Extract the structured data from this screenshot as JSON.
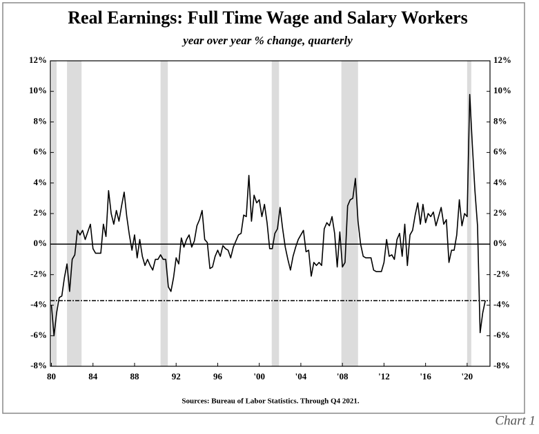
{
  "chart_data": {
    "type": "line",
    "title": "Real Earnings: Full Time Wage and Salary Workers",
    "subtitle": "year over year % change, quarterly",
    "source": "Sources: Bureau of Labor Statistics. Through Q4 2021.",
    "chart_label": "Chart 1",
    "x": [
      1980,
      1980.25,
      1980.5,
      1980.75,
      1981,
      1981.25,
      1981.5,
      1981.75,
      1982,
      1982.25,
      1982.5,
      1982.75,
      1983,
      1983.25,
      1983.5,
      1983.75,
      1984,
      1984.25,
      1984.5,
      1984.75,
      1985,
      1985.25,
      1985.5,
      1985.75,
      1986,
      1986.25,
      1986.5,
      1986.75,
      1987,
      1987.25,
      1987.5,
      1987.75,
      1988,
      1988.25,
      1988.5,
      1988.75,
      1989,
      1989.25,
      1989.5,
      1989.75,
      1990,
      1990.25,
      1990.5,
      1990.75,
      1991,
      1991.25,
      1991.5,
      1991.75,
      1992,
      1992.25,
      1992.5,
      1992.75,
      1993,
      1993.25,
      1993.5,
      1993.75,
      1994,
      1994.25,
      1994.5,
      1994.75,
      1995,
      1995.25,
      1995.5,
      1995.75,
      1996,
      1996.25,
      1996.5,
      1996.75,
      1997,
      1997.25,
      1997.5,
      1997.75,
      1998,
      1998.25,
      1998.5,
      1998.75,
      1999,
      1999.25,
      1999.5,
      1999.75,
      2000,
      2000.25,
      2000.5,
      2000.75,
      2001,
      2001.25,
      2001.5,
      2001.75,
      2002,
      2002.25,
      2002.5,
      2002.75,
      2003,
      2003.25,
      2003.5,
      2003.75,
      2004,
      2004.25,
      2004.5,
      2004.75,
      2005,
      2005.25,
      2005.5,
      2005.75,
      2006,
      2006.25,
      2006.5,
      2006.75,
      2007,
      2007.25,
      2007.5,
      2007.75,
      2008,
      2008.25,
      2008.5,
      2008.75,
      2009,
      2009.25,
      2009.5,
      2009.75,
      2010,
      2010.25,
      2010.5,
      2010.75,
      2011,
      2011.25,
      2011.5,
      2011.75,
      2012,
      2012.25,
      2012.5,
      2012.75,
      2013,
      2013.25,
      2013.5,
      2013.75,
      2014,
      2014.25,
      2014.5,
      2014.75,
      2015,
      2015.25,
      2015.5,
      2015.75,
      2016,
      2016.25,
      2016.5,
      2016.75,
      2017,
      2017.25,
      2017.5,
      2017.75,
      2018,
      2018.25,
      2018.5,
      2018.75,
      2019,
      2019.25,
      2019.5,
      2019.75,
      2020,
      2020.25,
      2020.5,
      2020.75,
      2021,
      2021.25,
      2021.5,
      2021.75
    ],
    "series": [
      {
        "name": "Real Earnings",
        "color": "#000000",
        "values": [
          -4.0,
          -6.0,
          -4.5,
          -3.5,
          -3.4,
          -2.2,
          -1.3,
          -3.1,
          -1.0,
          -0.7,
          0.9,
          0.6,
          0.9,
          0.3,
          0.8,
          1.3,
          -0.3,
          -0.6,
          -0.6,
          -0.6,
          1.3,
          0.5,
          3.5,
          2.0,
          1.3,
          2.2,
          1.5,
          2.5,
          3.4,
          1.8,
          0.6,
          -0.4,
          0.6,
          -0.9,
          0.3,
          -0.8,
          -1.4,
          -1.0,
          -1.4,
          -1.7,
          -1.0,
          -1.0,
          -0.7,
          -1.0,
          -1.0,
          -2.8,
          -3.1,
          -2.2,
          -0.9,
          -1.3,
          0.4,
          -0.2,
          0.3,
          0.6,
          -0.2,
          0.2,
          1.2,
          1.6,
          2.2,
          0.3,
          0.1,
          -1.6,
          -1.5,
          -0.8,
          -0.4,
          -0.8,
          -0.1,
          -0.3,
          -0.4,
          -0.9,
          -0.2,
          0.2,
          0.6,
          0.7,
          1.9,
          1.8,
          4.5,
          1.5,
          3.2,
          2.7,
          2.9,
          1.8,
          2.6,
          1.4,
          -0.3,
          -0.3,
          0.7,
          1.0,
          2.4,
          1.0,
          -0.2,
          -1.0,
          -1.7,
          -0.8,
          -0.2,
          0.3,
          0.6,
          0.9,
          -0.5,
          -0.4,
          -2.1,
          -1.2,
          -1.4,
          -1.2,
          -1.4,
          1.0,
          1.4,
          1.2,
          1.8,
          0.7,
          -1.5,
          0.8,
          -1.5,
          -1.2,
          2.5,
          2.9,
          3.0,
          4.3,
          1.5,
          0.0,
          -0.8,
          -0.9,
          -0.9,
          -0.9,
          -1.7,
          -1.8,
          -1.8,
          -1.8,
          -1.2,
          0.3,
          -0.8,
          -0.7,
          -1.0,
          0.3,
          0.7,
          -0.8,
          1.3,
          -1.4,
          0.6,
          0.9,
          1.9,
          2.7,
          1.3,
          2.6,
          1.4,
          2.0,
          1.8,
          2.1,
          1.2,
          1.8,
          2.4,
          1.3,
          1.6,
          -1.2,
          -0.4,
          -0.4,
          0.6,
          2.9,
          1.2,
          2.0,
          1.8,
          9.8,
          6.5,
          3.5,
          1.2,
          -5.8,
          -4.5,
          -3.7
        ]
      }
    ],
    "recessions": [
      [
        1980.0,
        1980.5
      ],
      [
        1981.5,
        1982.9
      ],
      [
        1990.5,
        1991.2
      ],
      [
        2001.2,
        2001.9
      ],
      [
        2007.9,
        2009.5
      ],
      [
        2020.0,
        2020.4
      ]
    ],
    "reference_line": -3.7,
    "xlim": [
      1979.9,
      2022.2
    ],
    "xticks": [
      {
        "value": 1980,
        "label": "80"
      },
      {
        "value": 1984,
        "label": "84"
      },
      {
        "value": 1988,
        "label": "88"
      },
      {
        "value": 1992,
        "label": "92"
      },
      {
        "value": 1996,
        "label": "96"
      },
      {
        "value": 2000,
        "label": "'00"
      },
      {
        "value": 2004,
        "label": "'04"
      },
      {
        "value": 2008,
        "label": "'08"
      },
      {
        "value": 2012,
        "label": "'12"
      },
      {
        "value": 2016,
        "label": "'16"
      },
      {
        "value": 2020,
        "label": "'20"
      }
    ],
    "ylim": [
      -8,
      12
    ],
    "yticks": [
      {
        "value": -8,
        "label": "-8%"
      },
      {
        "value": -6,
        "label": "-6%"
      },
      {
        "value": -4,
        "label": "-4%"
      },
      {
        "value": -2,
        "label": "-2%"
      },
      {
        "value": 0,
        "label": "0%"
      },
      {
        "value": 2,
        "label": "2%"
      },
      {
        "value": 4,
        "label": "4%"
      },
      {
        "value": 6,
        "label": "6%"
      },
      {
        "value": 8,
        "label": "8%"
      },
      {
        "value": 10,
        "label": "10%"
      },
      {
        "value": 12,
        "label": "12%"
      }
    ]
  }
}
